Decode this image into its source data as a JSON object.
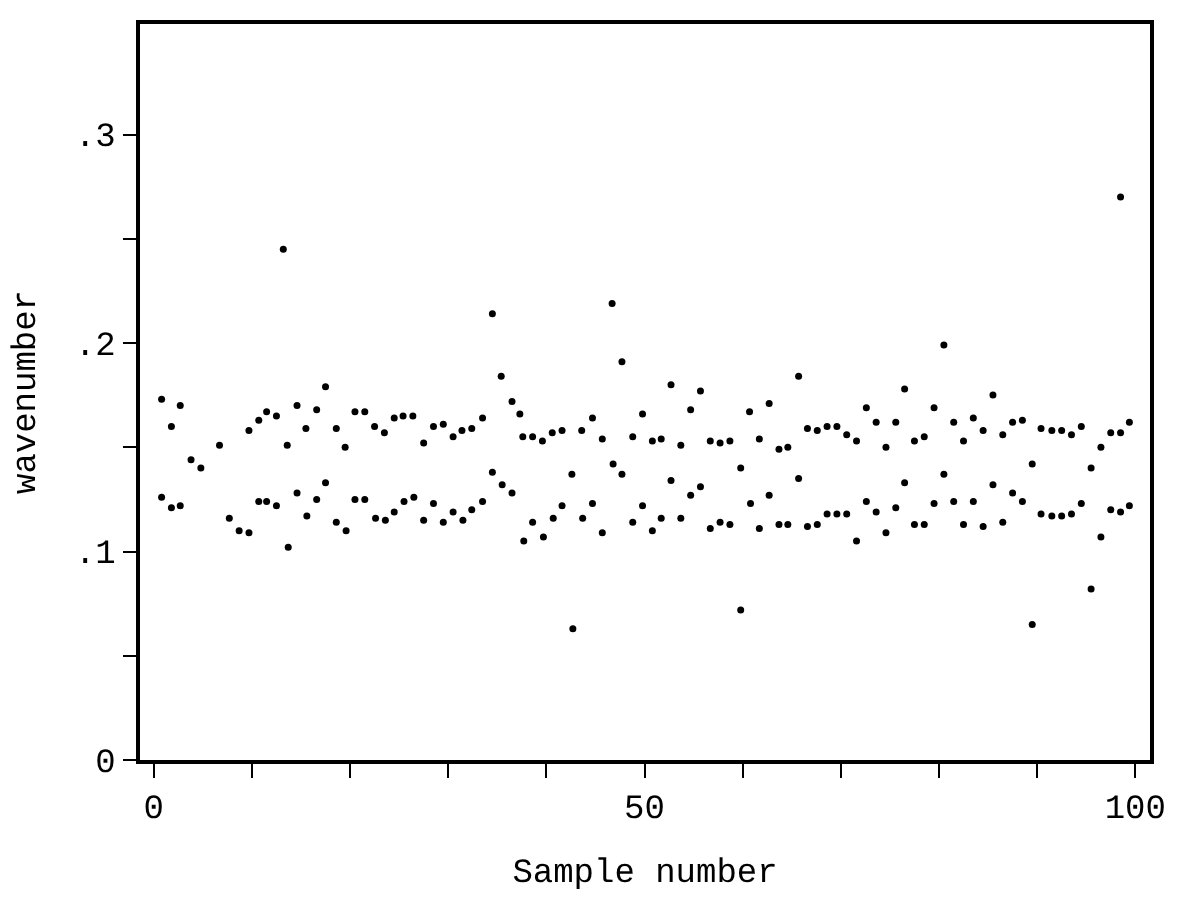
{
  "chart_data": {
    "type": "scatter",
    "xlabel": "Sample number",
    "ylabel": "wavenumber",
    "xlim": [
      -1.4,
      101.5
    ],
    "ylim": [
      0,
      0.353
    ],
    "xticks": [
      0,
      {
        "value": 10,
        "label": null
      },
      {
        "value": 20,
        "label": null
      },
      {
        "value": 30,
        "label": null
      },
      {
        "value": 40,
        "label": null
      },
      50,
      {
        "value": 60,
        "label": null
      },
      {
        "value": 70,
        "label": null
      },
      {
        "value": 80,
        "label": null
      },
      {
        "value": 90,
        "label": null
      },
      100
    ],
    "yticks": [
      {
        "value": 0,
        "label": "0"
      },
      {
        "value": 0.05,
        "label": null
      },
      {
        "value": 0.1,
        "label": ".1"
      },
      {
        "value": 0.15,
        "label": null
      },
      {
        "value": 0.2,
        "label": ".2"
      },
      {
        "value": 0.25,
        "label": null
      },
      {
        "value": 0.3,
        "label": ".3"
      }
    ],
    "marker": "circle",
    "series": [
      {
        "color": "#000000",
        "x": [
          0.8,
          1.8,
          2.7,
          3.8,
          4.8,
          0.8,
          1.8,
          2.7,
          6.7,
          7.7,
          8.7,
          9.7,
          9.7,
          10.7,
          11.5,
          12.5,
          10.7,
          11.5,
          12.5,
          13.2,
          13.6,
          13.7,
          14.6,
          14.6,
          15.5,
          15.6,
          16.6,
          16.6,
          17.5,
          17.5,
          18.6,
          18.6,
          19.5,
          19.6,
          20.5,
          20.5,
          21.5,
          21.5,
          22.5,
          22.6,
          23.5,
          23.6,
          24.5,
          24.5,
          25.4,
          25.5,
          26.4,
          26.5,
          27.5,
          27.5,
          28.5,
          28.5,
          29.5,
          29.5,
          30.5,
          30.5,
          31.4,
          31.5,
          32.4,
          32.4,
          33.5,
          33.5,
          34.5,
          35.4,
          36.5,
          37.3,
          37.6,
          38.6,
          39.6,
          40.6,
          41.6,
          43.6,
          44.7,
          45.7,
          46.7,
          47.7,
          48.8,
          49.8,
          50.8,
          51.7,
          52.7,
          53.7,
          54.7,
          55.7,
          56.7,
          57.7,
          58.7,
          60.7,
          61.7,
          62.7,
          63.7,
          64.6,
          34.5,
          35.5,
          36.5,
          37.7,
          38.6,
          39.7,
          40.7,
          41.6,
          42.6,
          43.7,
          44.7,
          45.7,
          46.8,
          47.7,
          48.8,
          49.8,
          50.8,
          51.7,
          52.7,
          53.7,
          54.7,
          55.7,
          56.7,
          57.7,
          58.7,
          59.8,
          59.8,
          60.8,
          61.7,
          62.7,
          63.7,
          64.6,
          42.7,
          65.7,
          65.7,
          66.6,
          66.6,
          67.6,
          68.6,
          69.6,
          70.6,
          71.6,
          72.6,
          73.6,
          74.6,
          75.6,
          76.5,
          77.5,
          78.5,
          79.5,
          80.5,
          81.5,
          82.5,
          83.5,
          84.5,
          85.5,
          86.5,
          87.5,
          88.5,
          89.5,
          90.4,
          91.5,
          92.5,
          93.5,
          94.5,
          95.5,
          96.5,
          97.5,
          98.5,
          99.4,
          67.6,
          68.6,
          69.6,
          70.6,
          71.6,
          72.6,
          73.6,
          74.6,
          75.6,
          76.5,
          77.5,
          78.5,
          79.5,
          80.5,
          81.5,
          82.5,
          83.5,
          84.5,
          85.5,
          86.5,
          87.5,
          88.5,
          89.5,
          90.4,
          91.5,
          92.5,
          93.5,
          94.5,
          95.5,
          96.5,
          97.5,
          98.5,
          99.4,
          98.5
        ],
        "values": [
          0.173,
          0.16,
          0.17,
          0.144,
          0.14,
          0.126,
          0.121,
          0.122,
          0.151,
          0.116,
          0.11,
          0.109,
          0.158,
          0.163,
          0.167,
          0.165,
          0.124,
          0.124,
          0.122,
          0.245,
          0.151,
          0.102,
          0.17,
          0.128,
          0.159,
          0.117,
          0.168,
          0.125,
          0.179,
          0.133,
          0.159,
          0.114,
          0.15,
          0.11,
          0.167,
          0.125,
          0.167,
          0.125,
          0.16,
          0.116,
          0.157,
          0.115,
          0.164,
          0.119,
          0.165,
          0.124,
          0.165,
          0.126,
          0.152,
          0.115,
          0.16,
          0.123,
          0.161,
          0.114,
          0.155,
          0.119,
          0.158,
          0.115,
          0.159,
          0.12,
          0.164,
          0.124,
          0.214,
          0.184,
          0.172,
          0.166,
          0.155,
          0.155,
          0.153,
          0.157,
          0.158,
          0.158,
          0.164,
          0.154,
          0.219,
          0.191,
          0.155,
          0.166,
          0.153,
          0.154,
          0.18,
          0.151,
          0.168,
          0.177,
          0.153,
          0.152,
          0.153,
          0.167,
          0.154,
          0.171,
          0.149,
          0.15,
          0.138,
          0.132,
          0.128,
          0.105,
          0.114,
          0.107,
          0.116,
          0.122,
          0.137,
          0.116,
          0.123,
          0.109,
          0.142,
          0.137,
          0.114,
          0.122,
          0.11,
          0.116,
          0.134,
          0.116,
          0.127,
          0.131,
          0.111,
          0.114,
          0.113,
          0.14,
          0.072,
          0.123,
          0.111,
          0.127,
          0.113,
          0.113,
          0.063,
          0.184,
          0.135,
          0.159,
          0.112,
          0.158,
          0.16,
          0.16,
          0.156,
          0.153,
          0.169,
          0.162,
          0.15,
          0.162,
          0.178,
          0.153,
          0.155,
          0.169,
          0.199,
          0.162,
          0.153,
          0.164,
          0.158,
          0.175,
          0.156,
          0.162,
          0.163,
          0.142,
          0.159,
          0.158,
          0.158,
          0.156,
          0.16,
          0.14,
          0.15,
          0.157,
          0.157,
          0.162,
          0.113,
          0.118,
          0.118,
          0.118,
          0.105,
          0.124,
          0.119,
          0.109,
          0.121,
          0.133,
          0.113,
          0.113,
          0.123,
          0.137,
          0.124,
          0.113,
          0.124,
          0.112,
          0.132,
          0.114,
          0.128,
          0.124,
          0.065,
          0.118,
          0.117,
          0.117,
          0.118,
          0.123,
          0.082,
          0.107,
          0.12,
          0.119,
          0.122,
          0.27
        ]
      }
    ]
  }
}
